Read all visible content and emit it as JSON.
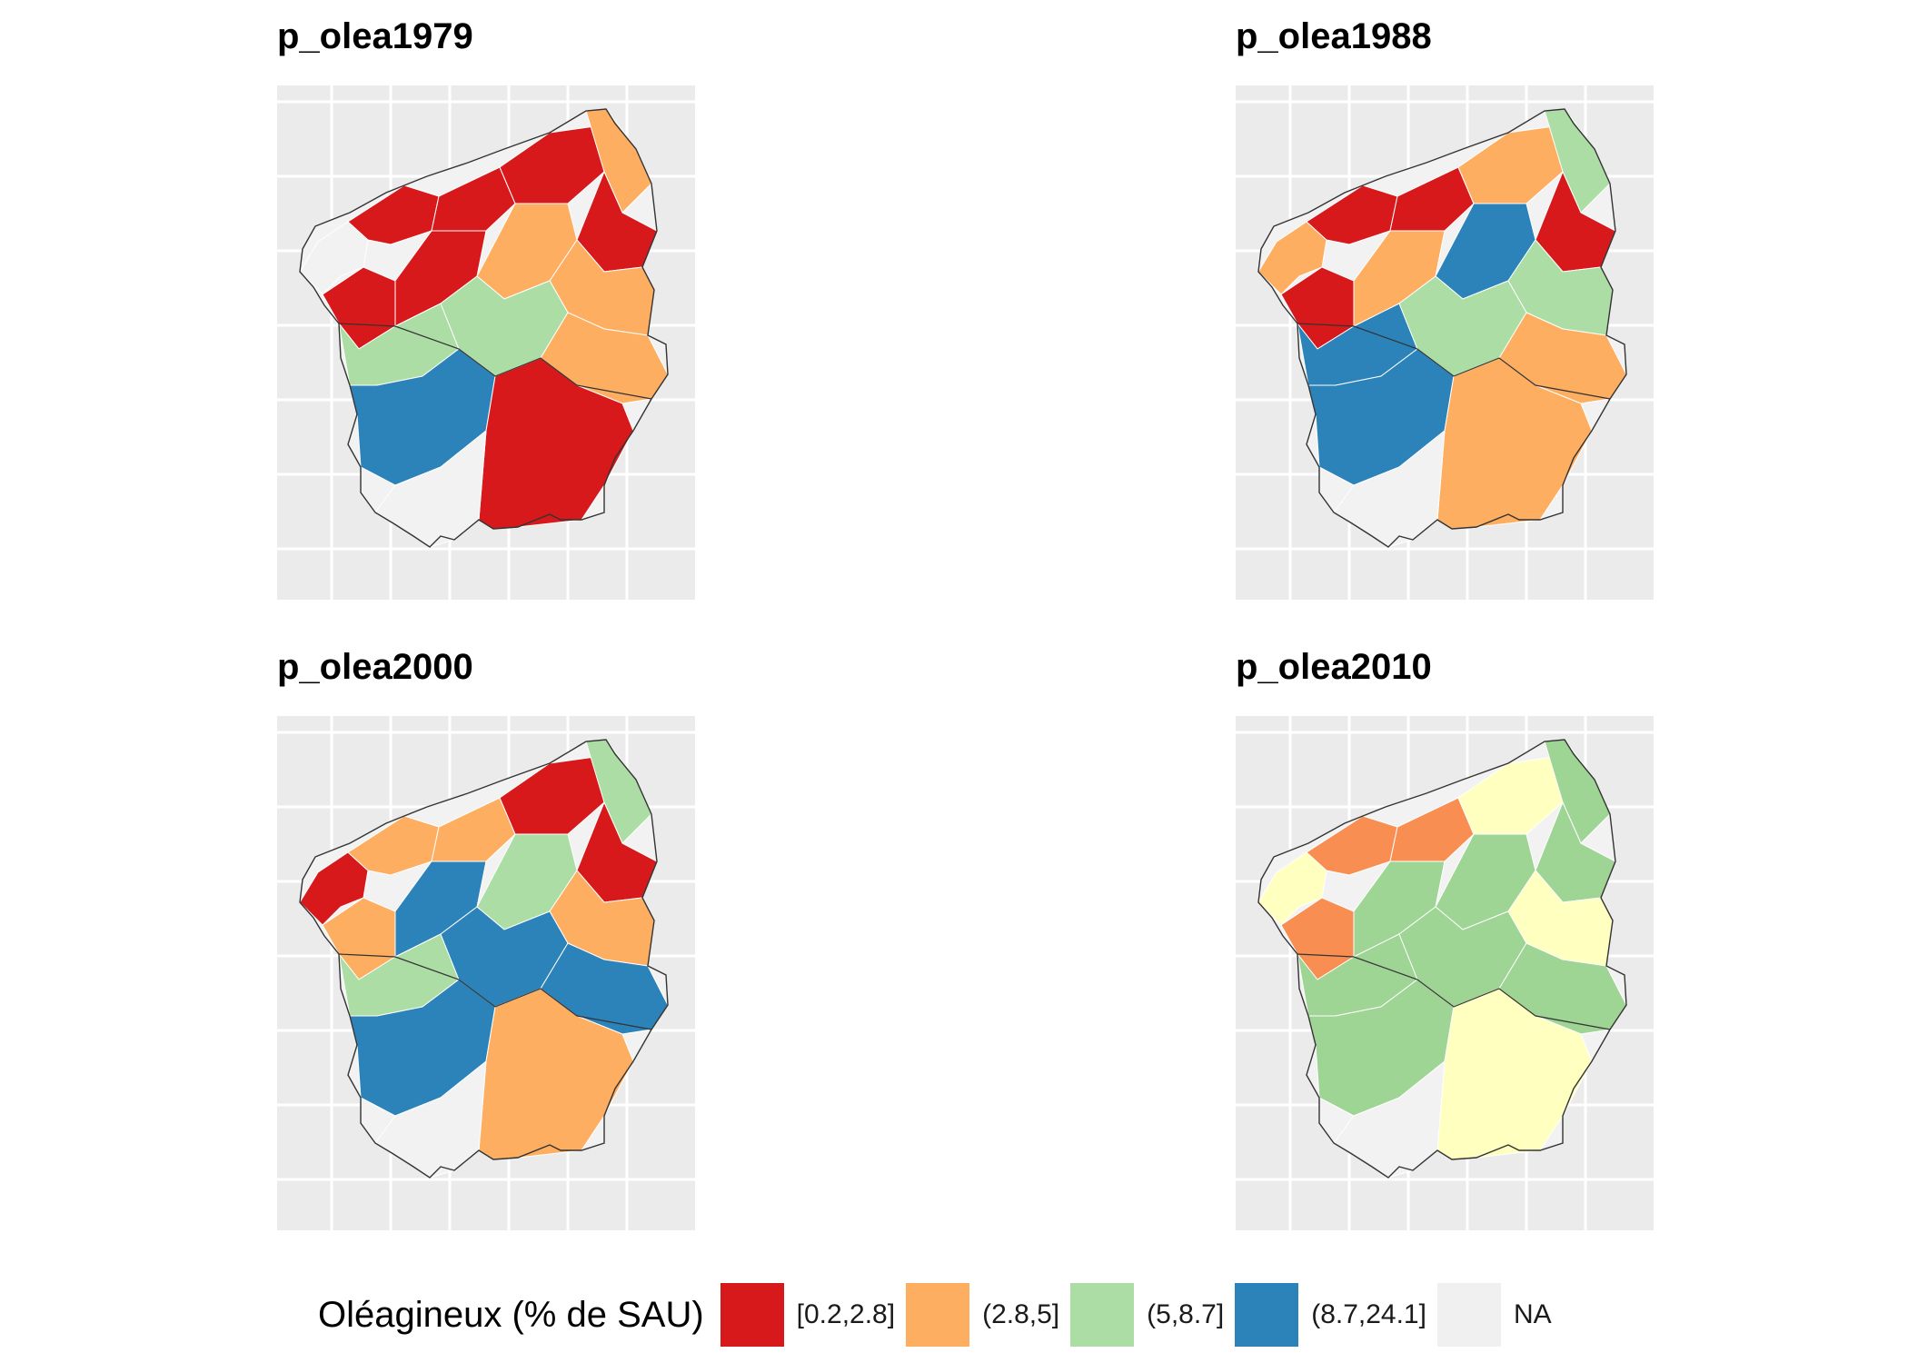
{
  "panels": [
    {
      "title": "p_olea1979",
      "regions": [
        {
          "cls": "NA"
        },
        {
          "cls": "c1"
        },
        {
          "cls": "c1"
        },
        {
          "cls": "c1"
        },
        {
          "cls": "c2"
        },
        {
          "cls": "c1"
        },
        {
          "cls": "c1"
        },
        {
          "cls": "c1"
        },
        {
          "cls": "c2"
        },
        {
          "cls": "c2"
        },
        {
          "cls": "c3"
        },
        {
          "cls": "c3"
        },
        {
          "cls": "c2"
        },
        {
          "cls": "c4"
        },
        {
          "cls": "c1"
        },
        {
          "cls": "NA"
        }
      ]
    },
    {
      "title": "p_olea1988",
      "regions": [
        {
          "cls": "c2"
        },
        {
          "cls": "c1"
        },
        {
          "cls": "c1"
        },
        {
          "cls": "c2"
        },
        {
          "cls": "c3"
        },
        {
          "cls": "c1"
        },
        {
          "cls": "c1"
        },
        {
          "cls": "c2"
        },
        {
          "cls": "c4"
        },
        {
          "cls": "c3"
        },
        {
          "cls": "c4"
        },
        {
          "cls": "c3"
        },
        {
          "cls": "c2"
        },
        {
          "cls": "c4"
        },
        {
          "cls": "c2"
        },
        {
          "cls": "NA"
        }
      ]
    },
    {
      "title": "p_olea2000",
      "regions": [
        {
          "cls": "c1"
        },
        {
          "cls": "c2"
        },
        {
          "cls": "c2"
        },
        {
          "cls": "c1"
        },
        {
          "cls": "c3"
        },
        {
          "cls": "c1"
        },
        {
          "cls": "c2"
        },
        {
          "cls": "c4"
        },
        {
          "cls": "c3"
        },
        {
          "cls": "c2"
        },
        {
          "cls": "c3"
        },
        {
          "cls": "c4"
        },
        {
          "cls": "c4"
        },
        {
          "cls": "c4"
        },
        {
          "cls": "c2"
        },
        {
          "cls": "NA"
        }
      ]
    },
    {
      "title": "p_olea2010",
      "regions": [
        {
          "cls": "y"
        },
        {
          "cls": "o"
        },
        {
          "cls": "o"
        },
        {
          "cls": "y"
        },
        {
          "cls": "g"
        },
        {
          "cls": "g"
        },
        {
          "cls": "o"
        },
        {
          "cls": "g"
        },
        {
          "cls": "g"
        },
        {
          "cls": "y"
        },
        {
          "cls": "g"
        },
        {
          "cls": "g"
        },
        {
          "cls": "g"
        },
        {
          "cls": "g"
        },
        {
          "cls": "y"
        },
        {
          "cls": "NA"
        }
      ]
    }
  ],
  "legend": {
    "title": "Oléagineux (% de SAU)",
    "items": [
      {
        "label": "[0.2,2.8]",
        "color": "#d7191c"
      },
      {
        "label": "(2.8,5]",
        "color": "#fdae61"
      },
      {
        "label": "(5,8.7]",
        "color": "#abdda4"
      },
      {
        "label": "(8.7,24.1]",
        "color": "#2b83ba"
      },
      {
        "label": "NA",
        "color": "#f0f0f0"
      }
    ]
  },
  "class_colors": {
    "c1": "#d7191c",
    "c2": "#fdae61",
    "c3": "#abdda4",
    "c4": "#2b83ba",
    "y": "#ffffbf",
    "o": "#f98e52",
    "g": "#9fd594",
    "NA": "#f2f2f2"
  }
}
